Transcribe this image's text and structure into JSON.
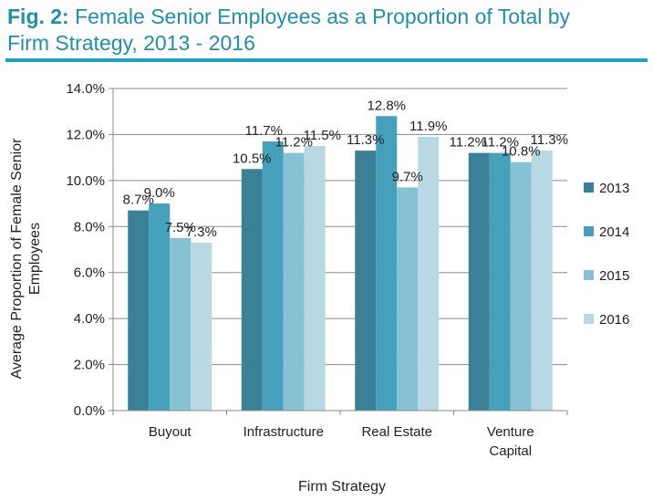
{
  "title": {
    "prefix": "Fig. 2:",
    "line1": " Female Senior Employees as a Proportion of Total by",
    "line2": "Firm Strategy, 2013 - 2016"
  },
  "colors": {
    "title": "#1f8fb0",
    "rule": "#1aa3c4",
    "series": [
      "#3a8197",
      "#45a1bb",
      "#86c2d3",
      "#b8d9e3"
    ]
  },
  "chart_data": {
    "type": "bar",
    "title": "Female Senior Employees as a Proportion of Total by Firm Strategy, 2013 - 2016",
    "xlabel": "Firm Strategy",
    "ylabel": "Average Proportion of Female Senior Employees",
    "ylabel_lines": [
      "Average Proportion of Female Senior",
      "Employees"
    ],
    "ylim": [
      0,
      14
    ],
    "yticks": [
      0,
      2,
      4,
      6,
      8,
      10,
      12,
      14
    ],
    "ytick_labels": [
      "0.0%",
      "2.0%",
      "4.0%",
      "6.0%",
      "8.0%",
      "10.0%",
      "12.0%",
      "14.0%"
    ],
    "categories": [
      "Buyout",
      "Infrastructure",
      "Real Estate",
      "Venture Capital"
    ],
    "category_lines": [
      [
        "Buyout"
      ],
      [
        "Infrastructure"
      ],
      [
        "Real Estate"
      ],
      [
        "Venture",
        "Capital"
      ]
    ],
    "series": [
      {
        "name": "2013",
        "values": [
          8.7,
          10.5,
          11.3,
          11.2
        ],
        "labels": [
          "8.7%",
          "10.5%",
          "11.3%",
          "11.2%"
        ]
      },
      {
        "name": "2014",
        "values": [
          9.0,
          11.7,
          12.8,
          11.2
        ],
        "labels": [
          "9.0%",
          "11.7%",
          "12.8%",
          "11.2%"
        ]
      },
      {
        "name": "2015",
        "values": [
          7.5,
          11.2,
          9.7,
          10.8
        ],
        "labels": [
          "7.5%",
          "11.2%",
          "9.7%",
          "10.8%"
        ]
      },
      {
        "name": "2016",
        "values": [
          7.3,
          11.5,
          11.9,
          11.3
        ],
        "labels": [
          "7.3%",
          "11.5%",
          "11.9%",
          "11.3%"
        ]
      }
    ],
    "grid": true,
    "legend": "right"
  }
}
